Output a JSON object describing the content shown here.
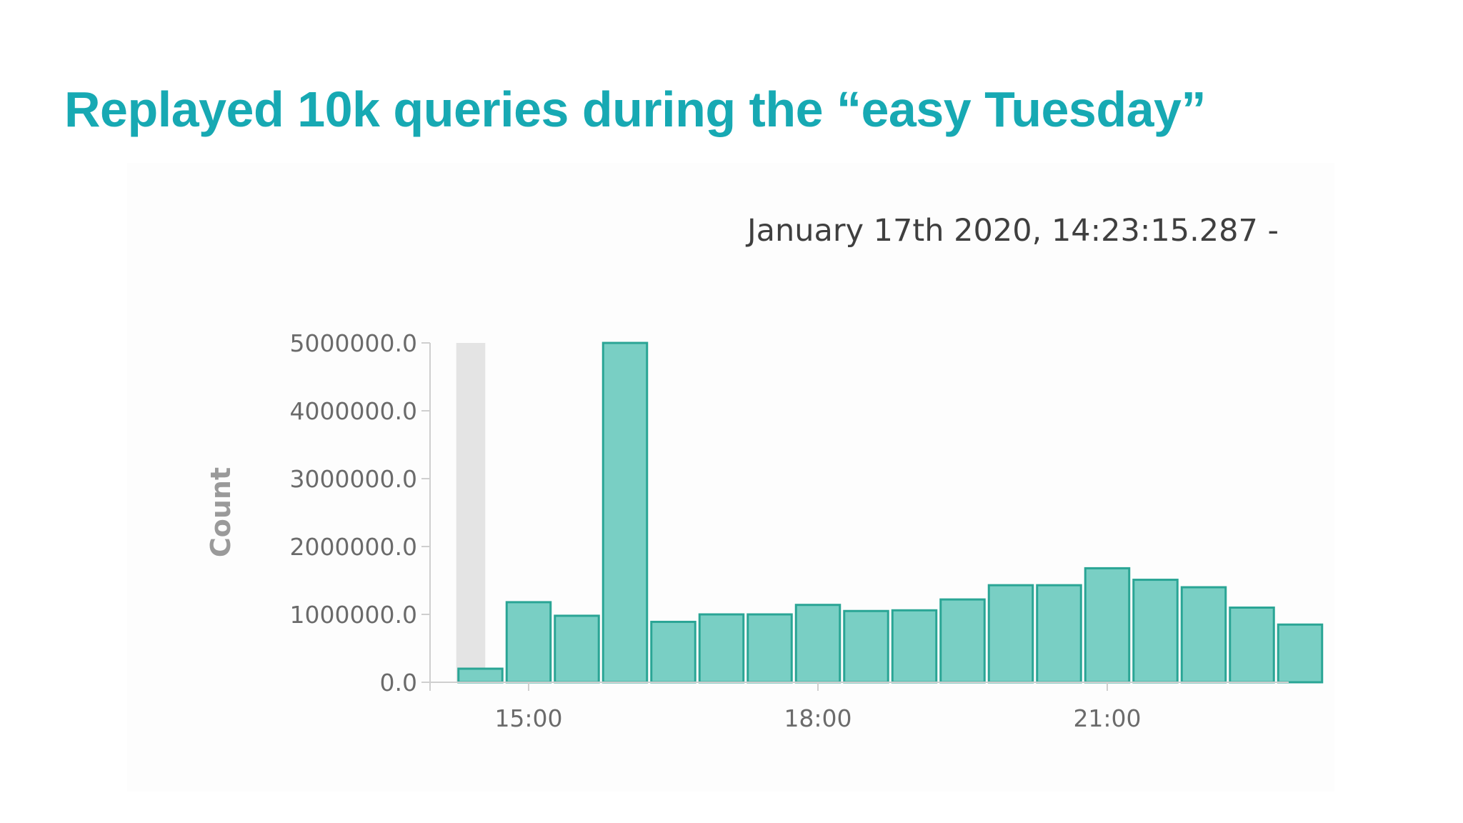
{
  "slide": {
    "title": "Replayed 10k queries during the “easy Tuesday”",
    "title_color": "#17a9b3"
  },
  "time_range_label": "January 17th 2020, 14:23:15.287 -",
  "chart_data": {
    "type": "bar",
    "title": "",
    "xlabel": "",
    "ylabel": "Count",
    "x_unit": "time of day (hours)",
    "x": [
      14.5,
      15.0,
      15.5,
      16.0,
      16.5,
      17.0,
      17.5,
      18.0,
      18.5,
      19.0,
      19.5,
      20.0,
      20.5,
      21.0,
      21.5,
      22.0,
      22.5,
      23.0
    ],
    "values": [
      200000,
      1180000,
      980000,
      5000000,
      890000,
      1000000,
      1000000,
      1140000,
      1050000,
      1060000,
      1220000,
      1430000,
      1430000,
      1680000,
      1510000,
      1400000,
      1100000,
      850000
    ],
    "partial_bucket_index": 0,
    "ylim": [
      0,
      5000000
    ],
    "y_ticks": [
      0,
      1000000,
      2000000,
      3000000,
      4000000,
      5000000
    ],
    "y_tick_labels": [
      "0.0",
      "1000000.0",
      "2000000.0",
      "3000000.0",
      "4000000.0",
      "5000000.0"
    ],
    "x_ticks": [
      15,
      18,
      21
    ],
    "x_tick_labels": [
      "15:00",
      "18:00",
      "21:00"
    ],
    "bar_color": "#79cfc4",
    "bar_edge_color": "#2aa595",
    "partial_bucket_color": "#e4e4e4",
    "axis_text_color": "#6b6b6b",
    "grid": false,
    "legend": "none"
  }
}
